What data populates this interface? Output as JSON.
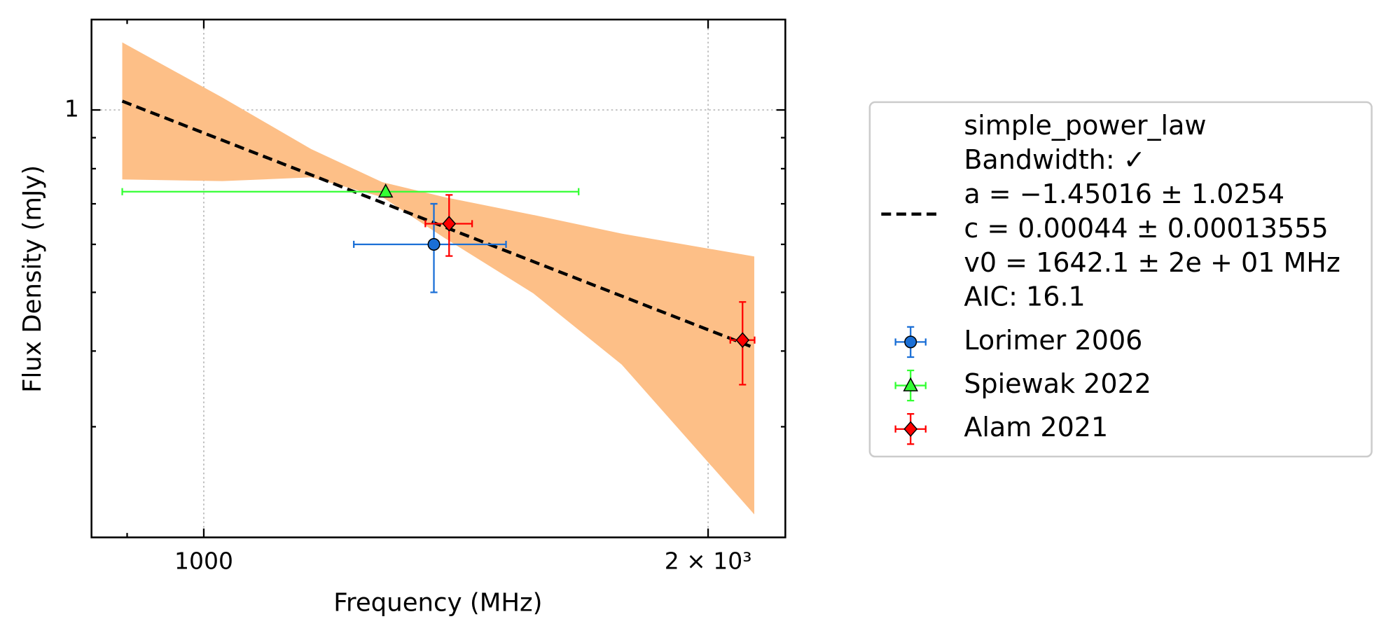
{
  "chart_data": {
    "type": "scatter",
    "xlabel": "Frequency (MHz)",
    "ylabel": "Flux Density (mJy)",
    "xscale": "log",
    "yscale": "log",
    "grid": true,
    "xlim": [
      857,
      2224
    ],
    "ylim": [
      0.197,
      1.41
    ],
    "xticks": [
      1000,
      {
        "value": 2000,
        "label": "2 × 10³"
      }
    ],
    "xminorticks": [
      900
    ],
    "yticks": [
      1
    ],
    "yminorticks": [
      0.3,
      0.4,
      0.5,
      0.6,
      0.7,
      0.8,
      0.9
    ],
    "band": {
      "color": "#fdbf87",
      "x": [
        894,
        1026,
        1159,
        1278,
        1392,
        1573,
        1776,
        2131
      ],
      "upper": [
        1.293,
        1.048,
        0.862,
        0.76,
        0.718,
        0.671,
        0.625,
        0.573
      ],
      "lower": [
        0.768,
        0.763,
        0.774,
        0.718,
        0.615,
        0.498,
        0.38,
        0.215
      ]
    },
    "fit": {
      "color": "#000000",
      "x": [
        894,
        2131
      ],
      "y": [
        1.034,
        0.405
      ],
      "label": [
        "simple_power_law",
        "Bandwidth: ✓",
        "a = −1.45016 ± 1.0254",
        "c = 0.00044 ± 0.00013555",
        "v0 = 1642.1 ± 2e + 01 MHz",
        "AIC: 16.1"
      ]
    },
    "series": [
      {
        "name": "Lorimer 2006",
        "color": "#1a6fd6",
        "marker": "circle",
        "x": [
          1372
        ],
        "y": [
          0.6
        ],
        "xerr": [
          143
        ],
        "yerr": [
          0.1
        ]
      },
      {
        "name": "Spiewak 2022",
        "color": "#33ff33",
        "marker": "triangle",
        "x": [
          1284
        ],
        "y": [
          0.733
        ],
        "xerr": [
          390
        ],
        "yerr": [
          0
        ]
      },
      {
        "name": "Alam 2021",
        "color": "#ff0000",
        "marker": "diamond",
        "x": [
          1401,
          2097
        ],
        "y": [
          0.649,
          0.417
        ],
        "xerr": [
          45,
          35
        ],
        "yerr": [
          0.075,
          0.065
        ]
      }
    ],
    "legend": "right"
  }
}
